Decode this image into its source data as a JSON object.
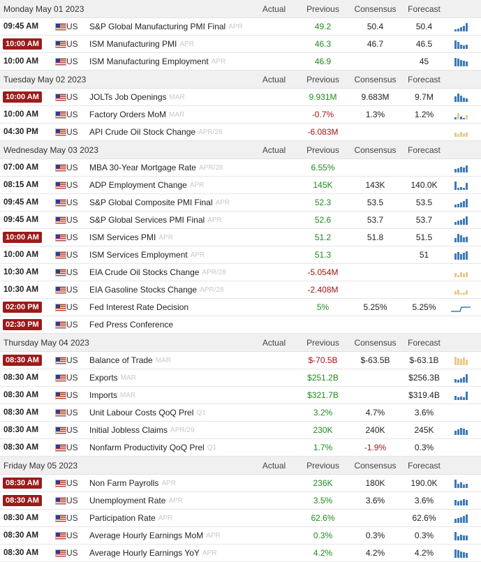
{
  "columns": {
    "actual": "Actual",
    "previous": "Previous",
    "consensus": "Consensus",
    "forecast": "Forecast"
  },
  "days": [
    {
      "date": "Monday May 01 2023",
      "events": [
        {
          "time": "09:45 AM",
          "hi": false,
          "country": "US",
          "name": "S&P Global Manufacturing PMI Final",
          "period": "APR",
          "previous": "49.2",
          "ptone": "pos",
          "consensus": "50.4",
          "forecast": "50.4",
          "chart": "blue",
          "bars": [
            3,
            4,
            6,
            8,
            12
          ]
        },
        {
          "time": "10:00 AM",
          "hi": true,
          "country": "US",
          "name": "ISM Manufacturing PMI",
          "period": "APR",
          "previous": "46.3",
          "ptone": "pos",
          "consensus": "46.7",
          "forecast": "46.5",
          "chart": "blue",
          "bars": [
            12,
            10,
            6,
            5,
            6
          ]
        },
        {
          "time": "10:00 AM",
          "hi": false,
          "country": "US",
          "name": "ISM Manufacturing Employment",
          "period": "APR",
          "previous": "46.9",
          "ptone": "pos",
          "consensus": "",
          "forecast": "45",
          "chart": "blue",
          "bars": [
            12,
            11,
            9,
            8,
            7
          ]
        }
      ]
    },
    {
      "date": "Tuesday May 02 2023",
      "events": [
        {
          "time": "10:00 AM",
          "hi": true,
          "country": "US",
          "name": "JOLTs Job Openings",
          "period": "MAR",
          "previous": "9.931M",
          "ptone": "pos",
          "consensus": "9.683M",
          "forecast": "9.7M",
          "chart": "blue",
          "bars": [
            8,
            12,
            9,
            6,
            5
          ]
        },
        {
          "time": "10:00 AM",
          "hi": false,
          "country": "US",
          "name": "Factory Orders MoM",
          "period": "MAR",
          "previous": "-0.7%",
          "ptone": "neg",
          "consensus": "1.3%",
          "forecast": "1.2%",
          "chart": "mixed",
          "bars": [
            3,
            9,
            4,
            2,
            6
          ]
        },
        {
          "time": "04:30 PM",
          "hi": false,
          "country": "US",
          "name": "API Crude Oil Stock Change",
          "period": "APR/28",
          "previous": "-6.083M",
          "ptone": "neg",
          "consensus": "",
          "forecast": "",
          "chart": "tan",
          "bars": [
            6,
            4,
            7,
            5,
            6
          ]
        }
      ]
    },
    {
      "date": "Wednesday May 03 2023",
      "events": [
        {
          "time": "07:00 AM",
          "hi": false,
          "country": "US",
          "name": "MBA 30-Year Mortgage Rate",
          "period": "APR/28",
          "previous": "6.55%",
          "ptone": "pos",
          "consensus": "",
          "forecast": "",
          "chart": "blue",
          "bars": [
            5,
            6,
            8,
            7,
            10
          ]
        },
        {
          "time": "08:15 AM",
          "hi": false,
          "country": "US",
          "name": "ADP Employment Change",
          "period": "APR",
          "previous": "145K",
          "ptone": "pos",
          "consensus": "143K",
          "forecast": "140.0K",
          "chart": "blue",
          "bars": [
            12,
            3,
            4,
            3,
            10
          ]
        },
        {
          "time": "09:45 AM",
          "hi": false,
          "country": "US",
          "name": "S&P Global Composite PMI Final",
          "period": "APR",
          "previous": "52.3",
          "ptone": "pos",
          "consensus": "53.5",
          "forecast": "53.5",
          "chart": "blue",
          "bars": [
            4,
            5,
            7,
            9,
            12
          ]
        },
        {
          "time": "09:45 AM",
          "hi": false,
          "country": "US",
          "name": "S&P Global Services PMI Final",
          "period": "APR",
          "previous": "52.6",
          "ptone": "pos",
          "consensus": "53.7",
          "forecast": "53.7",
          "chart": "blue",
          "bars": [
            4,
            6,
            7,
            9,
            12
          ]
        },
        {
          "time": "10:00 AM",
          "hi": true,
          "country": "US",
          "name": "ISM Services PMI",
          "period": "APR",
          "previous": "51.2",
          "ptone": "pos",
          "consensus": "51.8",
          "forecast": "51.5",
          "chart": "blue",
          "bars": [
            6,
            12,
            10,
            7,
            8
          ]
        },
        {
          "time": "10:00 AM",
          "hi": false,
          "country": "US",
          "name": "ISM Services Employment",
          "period": "APR",
          "previous": "51.3",
          "ptone": "pos",
          "consensus": "",
          "forecast": "51",
          "chart": "blue",
          "bars": [
            9,
            11,
            8,
            10,
            12
          ]
        },
        {
          "time": "10:30 AM",
          "hi": false,
          "country": "US",
          "name": "EIA Crude Oil Stocks Change",
          "period": "APR/28",
          "previous": "-5.054M",
          "ptone": "neg",
          "consensus": "",
          "forecast": "",
          "chart": "tan",
          "bars": [
            6,
            3,
            7,
            5,
            7
          ]
        },
        {
          "time": "10:30 AM",
          "hi": false,
          "country": "US",
          "name": "EIA Gasoline Stocks Change",
          "period": "APR/28",
          "previous": "-2.408M",
          "ptone": "neg",
          "consensus": "",
          "forecast": "",
          "chart": "tan",
          "bars": [
            5,
            7,
            2,
            3,
            6
          ]
        },
        {
          "time": "02:00 PM",
          "hi": true,
          "country": "US",
          "name": "Fed Interest Rate Decision",
          "period": "",
          "previous": "5%",
          "ptone": "pos",
          "consensus": "5.25%",
          "forecast": "5.25%",
          "chart": "line",
          "bars": []
        },
        {
          "time": "02:30 PM",
          "hi": true,
          "country": "US",
          "name": "Fed Press Conference",
          "period": "",
          "previous": "",
          "ptone": "neu",
          "consensus": "",
          "forecast": "",
          "chart": "none",
          "bars": []
        }
      ]
    },
    {
      "date": "Thursday May 04 2023",
      "events": [
        {
          "time": "08:30 AM",
          "hi": true,
          "country": "US",
          "name": "Balance of Trade",
          "period": "MAR",
          "previous": "$-70.5B",
          "ptone": "neg",
          "consensus": "$-63.5B",
          "forecast": "$-63.1B",
          "chart": "tan",
          "bars": [
            12,
            10,
            9,
            11,
            8
          ]
        },
        {
          "time": "08:30 AM",
          "hi": false,
          "country": "US",
          "name": "Exports",
          "period": "MAR",
          "previous": "$251.2B",
          "ptone": "pos",
          "consensus": "",
          "forecast": "$256.3B",
          "chart": "blue",
          "bars": [
            5,
            4,
            6,
            8,
            12
          ]
        },
        {
          "time": "08:30 AM",
          "hi": false,
          "country": "US",
          "name": "Imports",
          "period": "MAR",
          "previous": "$321.7B",
          "ptone": "pos",
          "consensus": "",
          "forecast": "$319.4B",
          "chart": "blue",
          "bars": [
            6,
            4,
            5,
            4,
            12
          ]
        },
        {
          "time": "08:30 AM",
          "hi": false,
          "country": "US",
          "name": "Unit Labour Costs QoQ Prel",
          "period": "Q1",
          "previous": "3.2%",
          "ptone": "pos",
          "consensus": "4.7%",
          "forecast": "3.6%",
          "chart": "none",
          "bars": []
        },
        {
          "time": "08:30 AM",
          "hi": false,
          "country": "US",
          "name": "Initial Jobless Claims",
          "period": "APR/29",
          "previous": "230K",
          "ptone": "pos",
          "consensus": "240K",
          "forecast": "245K",
          "chart": "blue",
          "bars": [
            6,
            8,
            10,
            9,
            7
          ]
        },
        {
          "time": "08:30 AM",
          "hi": false,
          "country": "US",
          "name": "Nonfarm Productivity QoQ Prel",
          "period": "Q1",
          "previous": "1.7%",
          "ptone": "pos",
          "consensus": "-1.9%",
          "ctone": "neg",
          "forecast": "0.3%",
          "chart": "none",
          "bars": []
        }
      ]
    },
    {
      "date": "Friday May 05 2023",
      "events": [
        {
          "time": "08:30 AM",
          "hi": true,
          "country": "US",
          "name": "Non Farm Payrolls",
          "period": "APR",
          "previous": "236K",
          "ptone": "pos",
          "consensus": "180K",
          "forecast": "190.0K",
          "chart": "blue",
          "bars": [
            12,
            6,
            8,
            5,
            6
          ]
        },
        {
          "time": "08:30 AM",
          "hi": true,
          "country": "US",
          "name": "Unemployment Rate",
          "period": "APR",
          "previous": "3.5%",
          "ptone": "pos",
          "consensus": "3.6%",
          "forecast": "3.6%",
          "chart": "blue",
          "bars": [
            8,
            6,
            7,
            9,
            8
          ]
        },
        {
          "time": "08:30 AM",
          "hi": false,
          "country": "US",
          "name": "Participation Rate",
          "period": "APR",
          "previous": "62.6%",
          "ptone": "pos",
          "consensus": "",
          "forecast": "62.6%",
          "chart": "blue",
          "bars": [
            6,
            7,
            8,
            10,
            12
          ]
        },
        {
          "time": "08:30 AM",
          "hi": false,
          "country": "US",
          "name": "Average Hourly Earnings MoM",
          "period": "APR",
          "previous": "0.3%",
          "ptone": "pos",
          "consensus": "0.3%",
          "forecast": "0.3%",
          "chart": "blue",
          "bars": [
            12,
            6,
            8,
            7,
            7
          ]
        },
        {
          "time": "08:30 AM",
          "hi": false,
          "country": "US",
          "name": "Average Hourly Earnings YoY",
          "period": "APR",
          "previous": "4.2%",
          "ptone": "pos",
          "consensus": "4.2%",
          "forecast": "4.2%",
          "chart": "blue",
          "bars": [
            12,
            11,
            9,
            8,
            7
          ]
        }
      ]
    }
  ],
  "colors": {
    "blue": "#3a7ab8",
    "tan": "#e8c98a",
    "neg_bar": "#3a7ab8"
  }
}
